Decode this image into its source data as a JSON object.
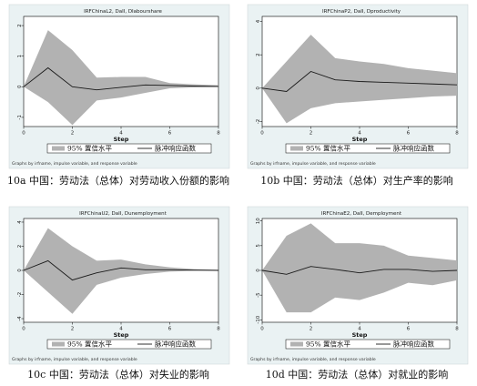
{
  "chart_data": [
    {
      "type": "area",
      "title": "IRFChinaL2, DaII, DIabourshare",
      "xlabel": "Step",
      "xlim": [
        0,
        8
      ],
      "xticks": [
        "0",
        "2",
        "4",
        "6",
        "8"
      ],
      "ylim": [
        -1.3,
        2.3
      ],
      "yticks": [
        "-1",
        "0",
        "1",
        "2"
      ],
      "x": [
        0,
        1,
        2,
        3,
        4,
        5,
        6,
        7,
        8
      ],
      "series": [
        {
          "name": "95% 置信水平",
          "lower": [
            0,
            -0.5,
            -1.25,
            -0.45,
            -0.35,
            -0.2,
            -0.05,
            -0.02,
            -0.01
          ],
          "upper": [
            0,
            1.85,
            1.2,
            0.3,
            0.32,
            0.32,
            0.12,
            0.08,
            0.05
          ]
        },
        {
          "name": "脉冲响应函数",
          "values": [
            0,
            0.62,
            0.0,
            -0.1,
            -0.02,
            0.06,
            0.04,
            0.02,
            0.01
          ]
        }
      ],
      "legend_note": "Graphs by irfname, impulse variable, and response variable",
      "caption": "10a 中国：劳动法（总体）对劳动收入份额的影响"
    },
    {
      "type": "area",
      "title": "IRFChinaP2, DaII, Dproductivity",
      "xlabel": "Step",
      "xlim": [
        0,
        8
      ],
      "xticks": [
        "0",
        "2",
        "4",
        "6",
        "8"
      ],
      "ylim": [
        -2.3,
        4.3
      ],
      "yticks": [
        "-2",
        "0",
        "2",
        "4"
      ],
      "x": [
        0,
        1,
        2,
        3,
        4,
        5,
        6,
        7,
        8
      ],
      "series": [
        {
          "name": "95% 置信水平",
          "lower": [
            0,
            -2.1,
            -1.2,
            -0.9,
            -0.8,
            -0.7,
            -0.6,
            -0.5,
            -0.45
          ],
          "upper": [
            0,
            1.6,
            3.2,
            1.8,
            1.6,
            1.45,
            1.2,
            1.05,
            0.9
          ]
        },
        {
          "name": "脉冲响应函数",
          "values": [
            0,
            -0.2,
            1.0,
            0.5,
            0.4,
            0.35,
            0.3,
            0.25,
            0.2
          ]
        }
      ],
      "legend_note": "Graphs by irfname, impulse variable, and response variable",
      "caption": "10b 中国：劳动法（总体）对生产率的影响"
    },
    {
      "type": "area",
      "title": "IRFChinaU2, DaII, Dunemployment",
      "xlabel": "Step",
      "xlim": [
        0,
        8
      ],
      "xticks": [
        "0",
        "2",
        "4",
        "6",
        "8"
      ],
      "ylim": [
        -4.3,
        4.3
      ],
      "yticks": [
        "-4",
        "-2",
        "0",
        "2",
        "4"
      ],
      "x": [
        0,
        1,
        2,
        3,
        4,
        5,
        6,
        7,
        8
      ],
      "series": [
        {
          "name": "95% 置信水平",
          "lower": [
            0,
            -1.8,
            -3.6,
            -1.2,
            -0.6,
            -0.3,
            -0.1,
            -0.05,
            0
          ],
          "upper": [
            0,
            3.5,
            2.0,
            0.8,
            0.9,
            0.5,
            0.25,
            0.1,
            0.05
          ]
        },
        {
          "name": "脉冲响应函数",
          "values": [
            0,
            0.8,
            -0.8,
            -0.2,
            0.2,
            0.05,
            0.05,
            0.02,
            0.0
          ]
        }
      ],
      "legend_note": "Graphs by irfname, impulse variable, and response variable",
      "caption": "10c 中国：劳动法（总体）对失业的影响"
    },
    {
      "type": "area",
      "title": "IRFChinaE2, DaII, Demployment",
      "xlabel": "Step",
      "xlim": [
        0,
        8
      ],
      "xticks": [
        "0",
        "2",
        "4",
        "6",
        "8"
      ],
      "ylim": [
        -10.5,
        10.5
      ],
      "yticks": [
        "-10",
        "-5",
        "0",
        "5",
        "10"
      ],
      "x": [
        0,
        1,
        2,
        3,
        4,
        5,
        6,
        7,
        8
      ],
      "series": [
        {
          "name": "95% 置信水平",
          "lower": [
            0,
            -8.5,
            -8.5,
            -5.5,
            -6.0,
            -4.5,
            -2.5,
            -3.0,
            -2.0
          ],
          "upper": [
            0,
            7.0,
            9.5,
            5.5,
            5.5,
            5.0,
            3.0,
            2.5,
            2.0
          ]
        },
        {
          "name": "脉冲响应函数",
          "values": [
            0,
            -0.8,
            0.8,
            0.2,
            -0.5,
            0.2,
            0.2,
            -0.2,
            0.0
          ]
        }
      ],
      "legend_note": "Graphs by irfname, impulse variable, and response variable",
      "caption": "10d 中国：劳动法（总体）对就业的影响"
    }
  ],
  "colors": {
    "band": "#b2b2b2",
    "line": "#1a1a1a",
    "plotbg": "#ffffff",
    "panelbg": "#eaf2f3",
    "legendbg": "#ffffff"
  }
}
